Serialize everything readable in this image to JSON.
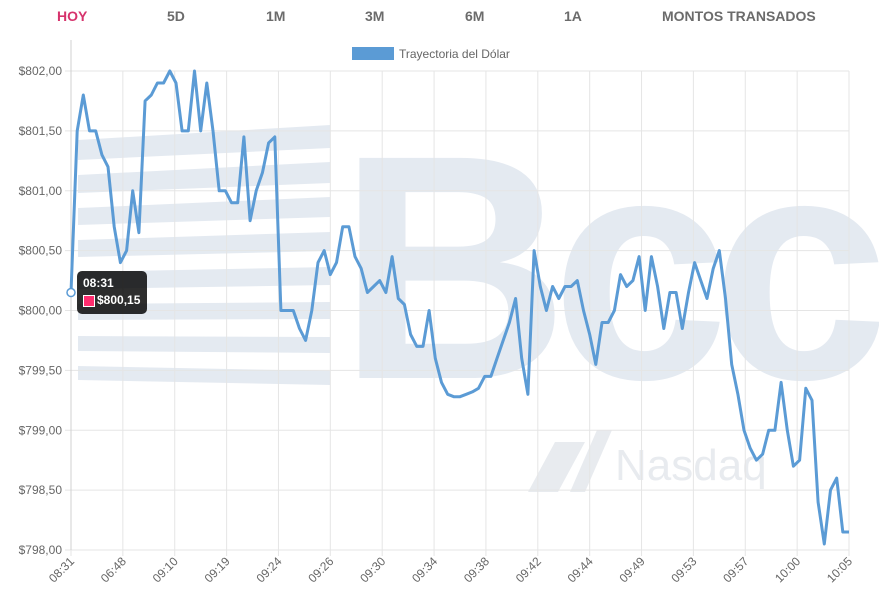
{
  "tabs": [
    {
      "label": "HOY",
      "active": true
    },
    {
      "label": "5D",
      "active": false
    },
    {
      "label": "1M",
      "active": false
    },
    {
      "label": "3M",
      "active": false
    },
    {
      "label": "6M",
      "active": false
    },
    {
      "label": "1A",
      "active": false
    },
    {
      "label": "MONTOS TRANSADOS",
      "active": false
    }
  ],
  "watermark": {
    "brand": "Bcc",
    "partner": "Nasdaq"
  },
  "tooltip": {
    "time": "08:31",
    "value": "$800,15"
  },
  "colors": {
    "line": "#5b9bd5",
    "active_tab": "#d6336c",
    "tooltip_swatch": "#ff2d6f"
  },
  "chart_data": {
    "type": "line",
    "legend": {
      "label": "Trayectoria del Dólar",
      "position": "top-center"
    },
    "grid": true,
    "ylim": [
      798.0,
      802.0
    ],
    "y_ticks": [
      {
        "value": 802.0,
        "label": "$802,00"
      },
      {
        "value": 801.5,
        "label": "$801,50"
      },
      {
        "value": 801.0,
        "label": "$801,00"
      },
      {
        "value": 800.5,
        "label": "$800,50"
      },
      {
        "value": 800.0,
        "label": "$800,00"
      },
      {
        "value": 799.5,
        "label": "$799,50"
      },
      {
        "value": 799.0,
        "label": "$799,00"
      },
      {
        "value": 798.5,
        "label": "$798,50"
      },
      {
        "value": 798.0,
        "label": "$798,00"
      }
    ],
    "x_tick_labels": [
      "08:31",
      "06:48",
      "09:10",
      "09:19",
      "09:24",
      "09:26",
      "09:30",
      "09:34",
      "09:38",
      "09:42",
      "09:44",
      "09:49",
      "09:53",
      "09:57",
      "10:00",
      "10:05"
    ],
    "series": [
      {
        "name": "Trayectoria del Dólar",
        "values": [
          800.15,
          801.5,
          801.8,
          801.5,
          801.5,
          801.3,
          801.2,
          800.7,
          800.4,
          800.5,
          801.0,
          800.65,
          801.75,
          801.8,
          801.9,
          801.9,
          802.0,
          801.9,
          801.5,
          801.5,
          802.0,
          801.5,
          801.9,
          801.5,
          801.0,
          801.0,
          800.9,
          800.9,
          801.45,
          800.75,
          801.0,
          801.15,
          801.4,
          801.45,
          800.0,
          800.0,
          800.0,
          799.85,
          799.75,
          800.0,
          800.4,
          800.5,
          800.3,
          800.4,
          800.7,
          800.7,
          800.45,
          800.35,
          800.15,
          800.2,
          800.25,
          800.15,
          800.45,
          800.1,
          800.05,
          799.8,
          799.7,
          799.7,
          800.0,
          799.6,
          799.4,
          799.3,
          799.28,
          799.28,
          799.3,
          799.32,
          799.35,
          799.45,
          799.45,
          799.6,
          799.75,
          799.9,
          800.1,
          799.6,
          799.3,
          800.5,
          800.2,
          800.0,
          800.2,
          800.1,
          800.2,
          800.2,
          800.25,
          800.0,
          799.8,
          799.55,
          799.9,
          799.9,
          800.0,
          800.3,
          800.2,
          800.25,
          800.45,
          800.0,
          800.45,
          800.2,
          799.85,
          800.15,
          800.15,
          799.85,
          800.15,
          800.4,
          800.25,
          800.1,
          800.35,
          800.5,
          800.1,
          799.55,
          799.3,
          799.0,
          798.85,
          798.75,
          798.8,
          799.0,
          799.0,
          799.4,
          799.0,
          798.7,
          798.75,
          799.35,
          799.25,
          798.4,
          798.05,
          798.5,
          798.6,
          798.15,
          798.15
        ]
      }
    ]
  }
}
